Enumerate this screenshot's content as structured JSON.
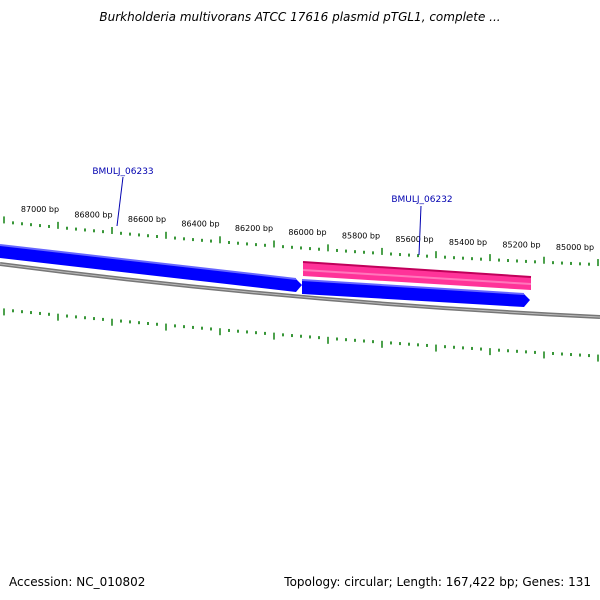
{
  "title": "Burkholderia multivorans ATCC 17616 plasmid pTGL1, complete ...",
  "footer": {
    "accession": "Accession: NC_010802",
    "summary": "Topology: circular; Length: 167,422 bp; Genes: 131"
  },
  "scale": {
    "tick_labels": [
      "87000 bp",
      "86800 bp",
      "86600 bp",
      "86400 bp",
      "86200 bp",
      "86000 bp",
      "85800 bp",
      "85600 bp",
      "85400 bp",
      "85200 bp",
      "85000 bp"
    ],
    "tick_color": "#228b22"
  },
  "genes": [
    {
      "label": "BMULJ_06233",
      "strand": "forward",
      "color": "#0000ff"
    },
    {
      "label": "",
      "strand": "forward",
      "color": "#0000ff"
    },
    {
      "label": "BMULJ_06232",
      "strand": "reverse",
      "color": "#ff3399"
    }
  ],
  "colors": {
    "backbone": "#808080",
    "forward": "#0000ff",
    "reverse": "#ff3399",
    "label": "#0000b0"
  }
}
